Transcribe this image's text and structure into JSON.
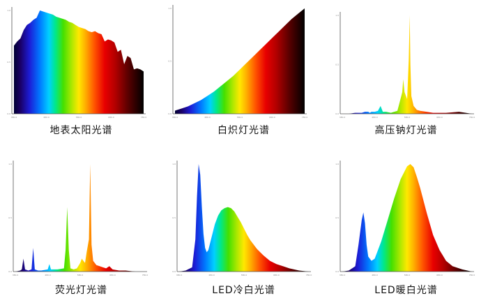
{
  "chart_data": [
    {
      "type": "area",
      "title": "地表太阳光谱",
      "xlim": [
        380,
        780
      ],
      "ylim": [
        0,
        1
      ],
      "x_ticks": [
        "380.0",
        "480.0",
        "580.0",
        "680.0",
        "780.0"
      ],
      "y_ticks": [
        "0.0",
        "0.5",
        "1.0"
      ],
      "x": [
        380,
        390,
        400,
        410,
        420,
        430,
        440,
        450,
        460,
        470,
        480,
        490,
        500,
        510,
        520,
        530,
        540,
        550,
        560,
        570,
        580,
        590,
        600,
        610,
        620,
        630,
        640,
        650,
        660,
        670,
        680,
        690,
        700,
        710,
        720,
        730,
        740,
        750,
        760,
        770,
        780
      ],
      "values": [
        0.66,
        0.7,
        0.73,
        0.81,
        0.86,
        0.88,
        0.91,
        0.93,
        1.0,
        0.99,
        0.98,
        0.97,
        0.96,
        0.94,
        0.93,
        0.92,
        0.91,
        0.89,
        0.88,
        0.86,
        0.84,
        0.83,
        0.82,
        0.8,
        0.79,
        0.8,
        0.78,
        0.77,
        0.7,
        0.72,
        0.71,
        0.69,
        0.6,
        0.62,
        0.48,
        0.56,
        0.54,
        0.43,
        0.44,
        0.43,
        0.41
      ]
    },
    {
      "type": "area",
      "title": "白炽灯光谱",
      "xlim": [
        380,
        780
      ],
      "ylim": [
        0,
        1
      ],
      "x_ticks": [
        "380.0",
        "480.0",
        "580.0",
        "680.0",
        "780.0"
      ],
      "y_ticks": [
        "0.0",
        "0.5",
        "1.0"
      ],
      "x": [
        380,
        400,
        420,
        440,
        460,
        480,
        500,
        520,
        540,
        560,
        580,
        600,
        620,
        640,
        660,
        680,
        700,
        720,
        740,
        760,
        780
      ],
      "values": [
        0.03,
        0.05,
        0.07,
        0.1,
        0.13,
        0.17,
        0.21,
        0.26,
        0.31,
        0.36,
        0.42,
        0.48,
        0.54,
        0.6,
        0.66,
        0.72,
        0.78,
        0.84,
        0.9,
        0.95,
        1.0
      ]
    },
    {
      "type": "area",
      "title": "高压钠灯光谱",
      "xlim": [
        380,
        780
      ],
      "ylim": [
        0,
        1
      ],
      "x_ticks": [
        "380.0",
        "480.0",
        "580.0",
        "680.0",
        "780.0"
      ],
      "y_ticks": [
        "0.0",
        "0.5",
        "1.0"
      ],
      "x": [
        380,
        400,
        420,
        440,
        450,
        460,
        465,
        470,
        480,
        490,
        498,
        505,
        515,
        530,
        550,
        565,
        568,
        572,
        580,
        585,
        588,
        590,
        593,
        600,
        610,
        620,
        640,
        660,
        700,
        740,
        780
      ],
      "values": [
        0.0,
        0.0,
        0.01,
        0.01,
        0.02,
        0.02,
        0.01,
        0.02,
        0.02,
        0.03,
        0.08,
        0.02,
        0.02,
        0.01,
        0.03,
        0.22,
        0.35,
        0.22,
        0.15,
        0.55,
        1.0,
        0.5,
        0.18,
        0.08,
        0.04,
        0.03,
        0.02,
        0.01,
        0.01,
        0.02,
        0.0
      ]
    },
    {
      "type": "area",
      "title": "荧光灯光谱",
      "xlim": [
        380,
        780
      ],
      "ylim": [
        0,
        1
      ],
      "x_ticks": [
        "380.0",
        "480.0",
        "580.0",
        "680.0",
        "780.0"
      ],
      "y_ticks": [
        "0.0",
        "0.5",
        "1.0"
      ],
      "x": [
        380,
        395,
        400,
        405,
        410,
        420,
        430,
        435,
        440,
        450,
        460,
        480,
        485,
        490,
        500,
        510,
        530,
        535,
        540,
        545,
        550,
        560,
        570,
        580,
        585,
        590,
        595,
        600,
        607,
        611,
        615,
        620,
        630,
        640,
        650,
        660,
        670,
        680,
        700,
        720,
        750,
        780
      ],
      "values": [
        0.0,
        0.01,
        0.02,
        0.12,
        0.02,
        0.01,
        0.02,
        0.22,
        0.02,
        0.01,
        0.01,
        0.02,
        0.07,
        0.02,
        0.02,
        0.02,
        0.03,
        0.2,
        0.6,
        0.2,
        0.03,
        0.02,
        0.03,
        0.08,
        0.12,
        0.1,
        0.08,
        0.18,
        0.3,
        1.0,
        0.25,
        0.1,
        0.06,
        0.05,
        0.04,
        0.03,
        0.05,
        0.02,
        0.01,
        0.01,
        0.0,
        0.0
      ]
    },
    {
      "type": "area",
      "title": "LED冷白光谱",
      "xlim": [
        380,
        780
      ],
      "ylim": [
        0,
        1
      ],
      "x_ticks": [
        "380.0",
        "480.0",
        "580.0",
        "680.0",
        "780.0"
      ],
      "y_ticks": [
        "0.0",
        "0.5",
        "1.0"
      ],
      "x": [
        380,
        400,
        420,
        430,
        435,
        440,
        445,
        450,
        455,
        460,
        465,
        470,
        480,
        490,
        500,
        510,
        520,
        530,
        540,
        550,
        560,
        570,
        580,
        590,
        600,
        620,
        640,
        660,
        680,
        700,
        720,
        750,
        780
      ],
      "values": [
        0.0,
        0.01,
        0.04,
        0.3,
        0.7,
        1.0,
        0.9,
        0.6,
        0.35,
        0.22,
        0.18,
        0.2,
        0.32,
        0.44,
        0.52,
        0.57,
        0.59,
        0.6,
        0.59,
        0.56,
        0.51,
        0.46,
        0.4,
        0.34,
        0.29,
        0.21,
        0.15,
        0.1,
        0.07,
        0.05,
        0.03,
        0.01,
        0.0
      ]
    },
    {
      "type": "area",
      "title": "LED暖白光谱",
      "xlim": [
        380,
        780
      ],
      "ylim": [
        0,
        1
      ],
      "x_ticks": [
        "380.0",
        "480.0",
        "580.0",
        "680.0",
        "780.0"
      ],
      "y_ticks": [
        "0.0",
        "0.5",
        "1.0"
      ],
      "x": [
        380,
        400,
        420,
        430,
        440,
        445,
        450,
        455,
        460,
        470,
        480,
        500,
        520,
        540,
        560,
        580,
        590,
        600,
        610,
        620,
        640,
        660,
        680,
        700,
        720,
        750,
        780
      ],
      "values": [
        0.0,
        0.01,
        0.05,
        0.25,
        0.48,
        0.55,
        0.45,
        0.25,
        0.14,
        0.1,
        0.12,
        0.28,
        0.48,
        0.68,
        0.86,
        0.98,
        1.0,
        0.97,
        0.88,
        0.78,
        0.55,
        0.34,
        0.2,
        0.1,
        0.05,
        0.02,
        0.0
      ]
    }
  ]
}
